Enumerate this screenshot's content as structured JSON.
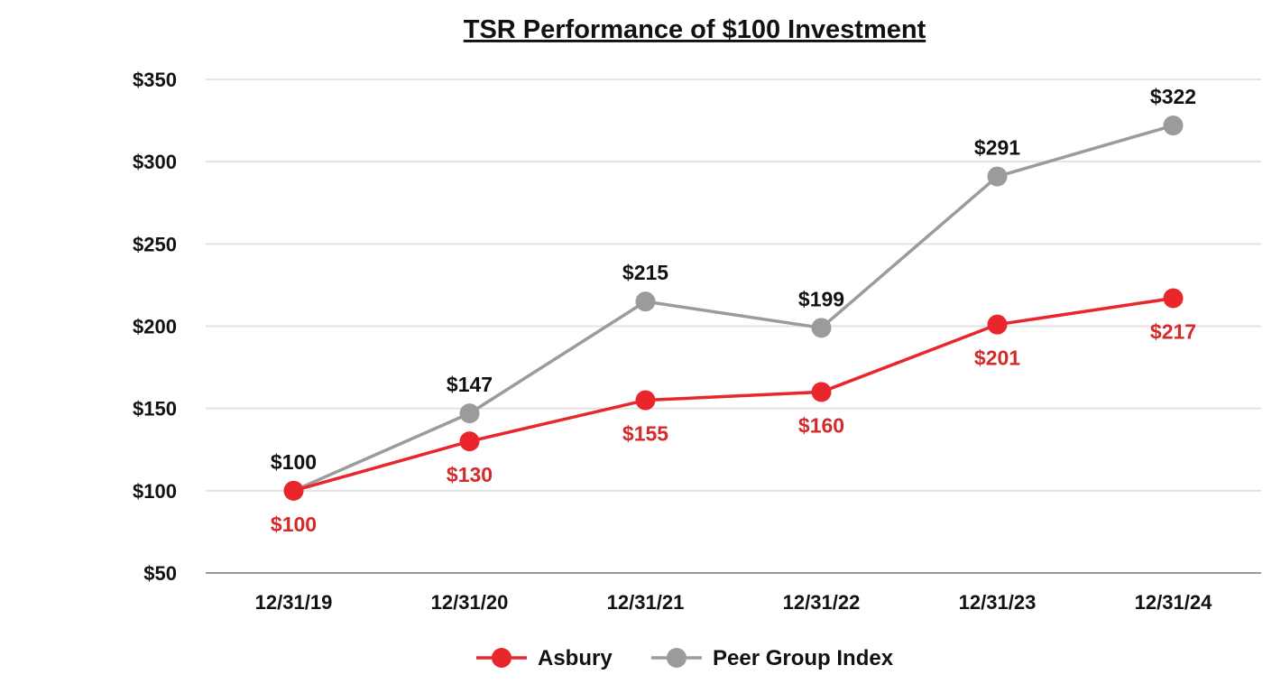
{
  "chart_data": {
    "type": "line",
    "title": "TSR Performance of $100 Investment",
    "xlabel": "",
    "ylabel": "",
    "categories": [
      "12/31/19",
      "12/31/20",
      "12/31/21",
      "12/31/22",
      "12/31/23",
      "12/31/24"
    ],
    "ylim": [
      50,
      350
    ],
    "yticks": [
      50,
      100,
      150,
      200,
      250,
      300,
      350
    ],
    "ytick_labels": [
      "$50",
      "$100",
      "$150",
      "$200",
      "$250",
      "$300",
      "$350"
    ],
    "grid": true,
    "legend_position": "bottom-center",
    "series": [
      {
        "name": "Asbury",
        "color": "#e8262b",
        "label_color": "#d42a2a",
        "label_placement": "below",
        "values": [
          100,
          130,
          155,
          160,
          201,
          217
        ],
        "labels": [
          "$100",
          "$130",
          "$155",
          "$160",
          "$201",
          "$217"
        ]
      },
      {
        "name": "Peer Group Index",
        "color": "#9b9b9b",
        "label_color": "#111111",
        "label_placement": "above",
        "values": [
          100,
          147,
          215,
          199,
          291,
          322
        ],
        "labels": [
          "$100",
          "$147",
          "$215",
          "$199",
          "$291",
          "$322"
        ]
      }
    ],
    "colors": {
      "gridline": "#e3e3e3",
      "axis": "#999999"
    }
  }
}
